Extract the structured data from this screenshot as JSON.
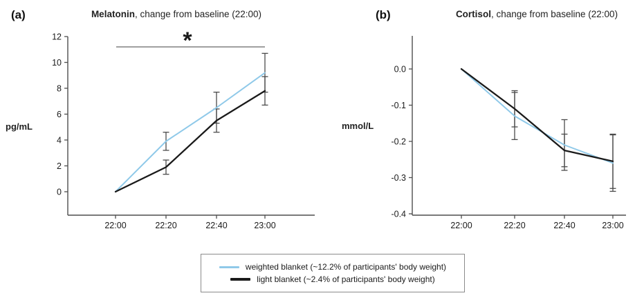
{
  "panels": [
    {
      "label": "(a)",
      "title_bold": "Melatonin",
      "title_rest": ", change from baseline (22:00)",
      "unit": "pg/mL"
    },
    {
      "label": "(b)",
      "title_bold": "Cortisol",
      "title_rest": ", change from baseline (22:00)",
      "unit": "mmol/L"
    }
  ],
  "legend": {
    "items": [
      {
        "label": "weighted blanket (~12.2% of participants' body weight)",
        "color": "#8fc9e9"
      },
      {
        "label": "light blanket (~2.4% of participants' body weight)",
        "color": "#1a1a1a"
      }
    ]
  },
  "colors": {
    "weighted_blanket": "#8fc9e9",
    "light_blanket": "#1a1a1a",
    "error_bar": "#4a4a4a",
    "axis": "#4d4d4d",
    "significance_line": "#666666"
  },
  "chart_data": [
    {
      "type": "line",
      "title": "Melatonin, change from baseline (22:00)",
      "xlabel": "",
      "ylabel": "pg/mL",
      "x": [
        "22:00",
        "22:20",
        "22:40",
        "23:00"
      ],
      "ylim": [
        -1.8,
        12
      ],
      "yticks": [
        12,
        10,
        8,
        6,
        4,
        2,
        0
      ],
      "ytick_labels": [
        "12",
        "10",
        "8",
        "6",
        "4",
        "2",
        "0"
      ],
      "grid": false,
      "series": [
        {
          "name": "weighted blanket (~12.2% of participants' body weight)",
          "color": "#8fc9e9",
          "values": [
            0,
            3.9,
            6.5,
            9.2
          ],
          "errors": [
            0,
            0.7,
            1.2,
            1.5
          ]
        },
        {
          "name": "light blanket (~2.4% of participants' body weight)",
          "color": "#1a1a1a",
          "values": [
            0,
            1.9,
            5.5,
            7.8
          ],
          "errors": [
            0,
            0.55,
            0.9,
            1.1
          ]
        }
      ],
      "significance": {
        "symbol": "*",
        "from": "22:00",
        "to": "23:00",
        "y": 11.2
      }
    },
    {
      "type": "line",
      "title": "Cortisol, change from baseline (22:00)",
      "xlabel": "",
      "ylabel": "mmol/L",
      "x": [
        "22:00",
        "22:20",
        "22:40",
        "23:00"
      ],
      "ylim": [
        -0.404,
        0.09
      ],
      "yticks": [
        0.0,
        -0.1,
        -0.2,
        -0.3,
        -0.4
      ],
      "ytick_labels": [
        "0.0",
        "-0.1",
        "-0.2",
        "-0.3",
        "-0.4"
      ],
      "grid": false,
      "series": [
        {
          "name": "weighted blanket (~12.2% of participants' body weight)",
          "color": "#8fc9e9",
          "values": [
            0,
            -0.13,
            -0.21,
            -0.26
          ],
          "errors": [
            0,
            0.065,
            0.07,
            0.078
          ]
        },
        {
          "name": "light blanket (~2.4% of participants' body weight)",
          "color": "#1a1a1a",
          "values": [
            0,
            -0.11,
            -0.225,
            -0.255
          ],
          "errors": [
            0,
            0.05,
            0.045,
            0.075
          ]
        }
      ],
      "significance": null
    }
  ]
}
